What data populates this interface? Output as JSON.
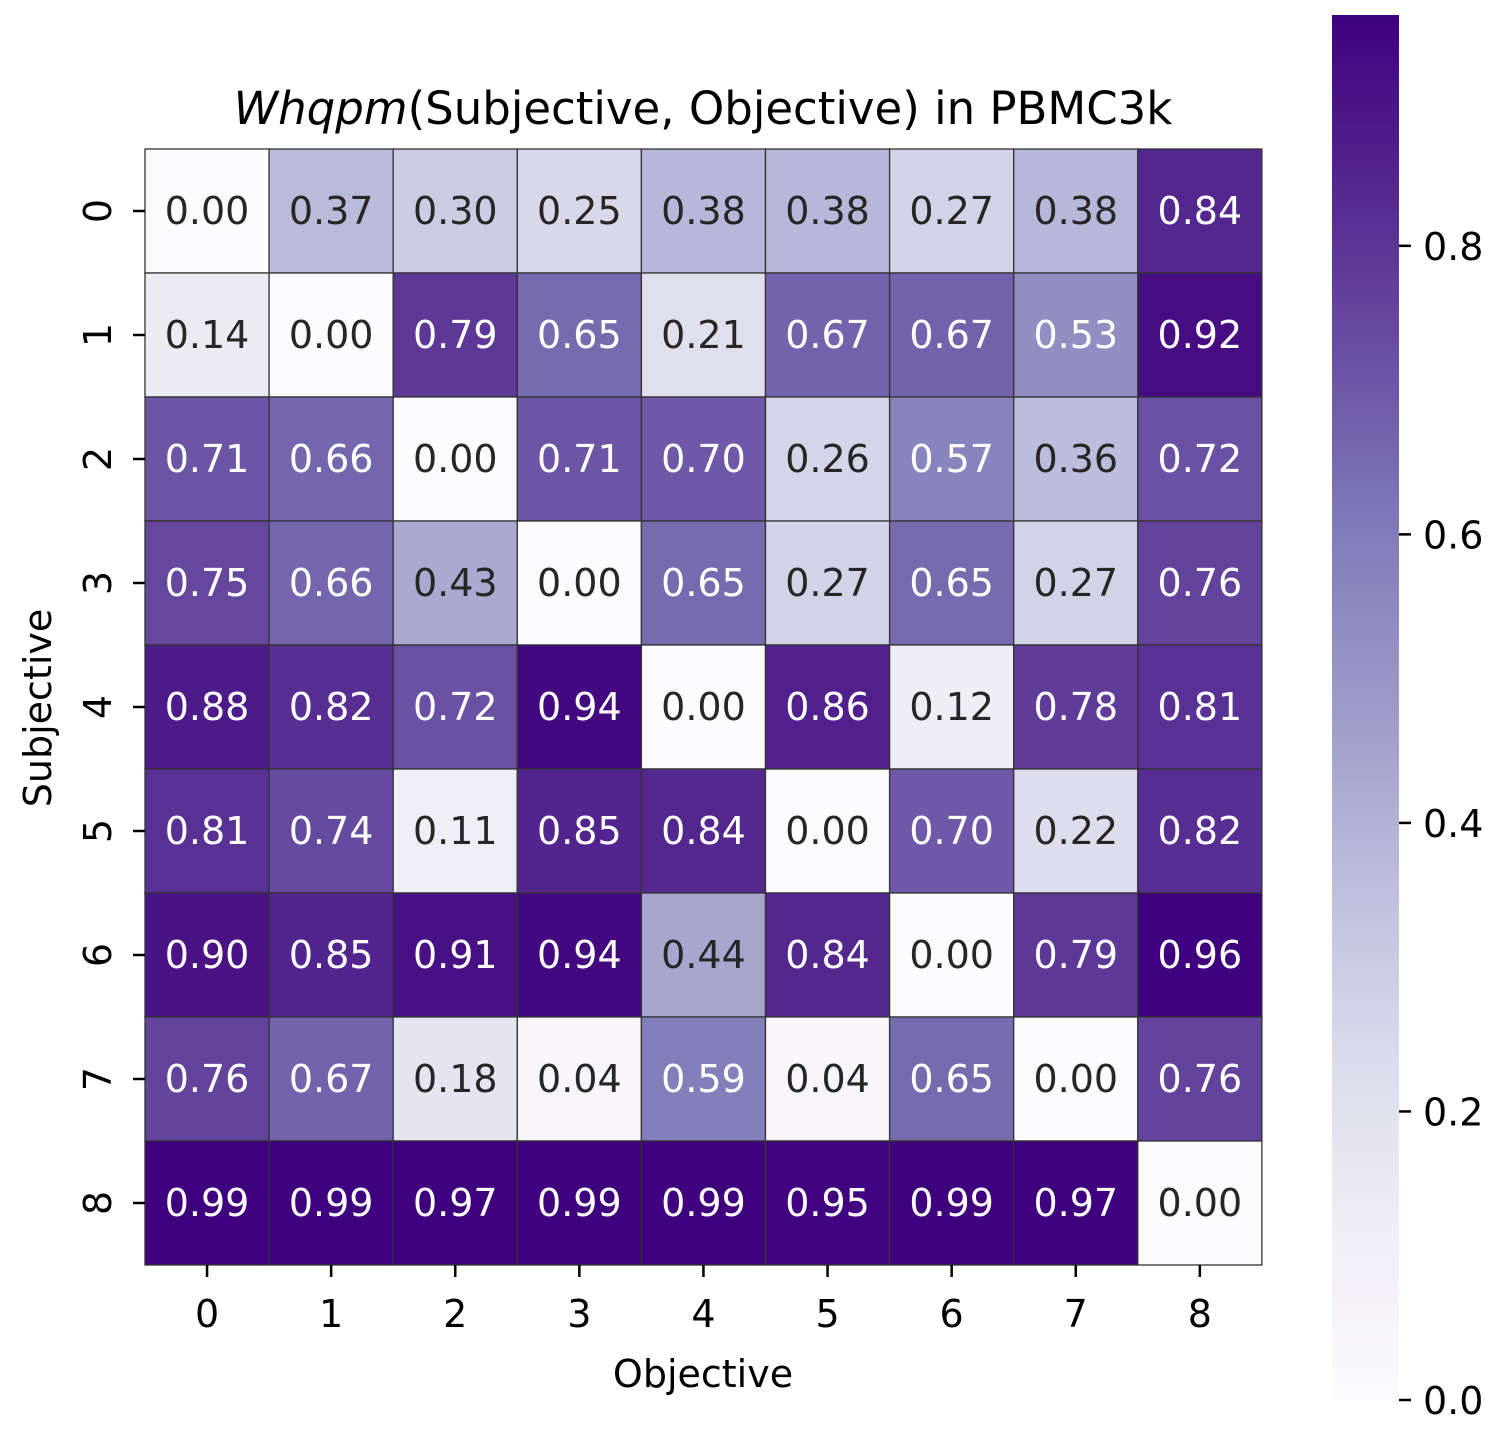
{
  "chart_data": {
    "type": "heatmap",
    "title": {
      "italic_part": "Whqpm",
      "rest": "(Subjective, Objective) in PBMC3k"
    },
    "xlabel": "Objective",
    "ylabel": "Subjective",
    "x_categories": [
      "0",
      "1",
      "2",
      "3",
      "4",
      "5",
      "6",
      "7",
      "8"
    ],
    "y_categories": [
      "0",
      "1",
      "2",
      "3",
      "4",
      "5",
      "6",
      "7",
      "8"
    ],
    "values": [
      [
        0.0,
        0.37,
        0.3,
        0.25,
        0.38,
        0.38,
        0.27,
        0.38,
        0.84
      ],
      [
        0.14,
        0.0,
        0.79,
        0.65,
        0.21,
        0.67,
        0.67,
        0.53,
        0.92
      ],
      [
        0.71,
        0.66,
        0.0,
        0.71,
        0.7,
        0.26,
        0.57,
        0.36,
        0.72
      ],
      [
        0.75,
        0.66,
        0.43,
        0.0,
        0.65,
        0.27,
        0.65,
        0.27,
        0.76
      ],
      [
        0.88,
        0.82,
        0.72,
        0.94,
        0.0,
        0.86,
        0.12,
        0.78,
        0.81
      ],
      [
        0.81,
        0.74,
        0.11,
        0.85,
        0.84,
        0.0,
        0.7,
        0.22,
        0.82
      ],
      [
        0.9,
        0.85,
        0.91,
        0.94,
        0.44,
        0.84,
        0.0,
        0.79,
        0.96
      ],
      [
        0.76,
        0.67,
        0.18,
        0.04,
        0.59,
        0.04,
        0.65,
        0.0,
        0.76
      ],
      [
        0.99,
        0.99,
        0.97,
        0.99,
        0.99,
        0.95,
        0.99,
        0.97,
        0.0
      ]
    ],
    "value_format": "2 decimals",
    "colormap": "Purples",
    "colorbar": {
      "range": [
        0.0,
        0.96
      ],
      "ticks": [
        0.0,
        0.2,
        0.4,
        0.6,
        0.8
      ],
      "tick_labels": [
        "0.0",
        "0.2",
        "0.4",
        "0.6",
        "0.8"
      ]
    },
    "colors": {
      "cell_border": "#333333",
      "dark_text": "#262626",
      "light_text": "#ffffff",
      "axis_text": "#000000"
    }
  }
}
